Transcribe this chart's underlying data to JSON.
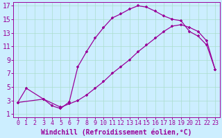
{
  "xlabel": "Windchill (Refroidissement éolien,°C)",
  "ylabel": "",
  "bg_color": "#cceeff",
  "line_color": "#990099",
  "marker": "+",
  "xlim": [
    -0.5,
    23.5
  ],
  "ylim": [
    0.5,
    17.5
  ],
  "xticks": [
    0,
    1,
    2,
    3,
    4,
    5,
    6,
    7,
    8,
    9,
    10,
    11,
    12,
    13,
    14,
    15,
    16,
    17,
    18,
    19,
    20,
    21,
    22,
    23
  ],
  "yticks": [
    1,
    3,
    5,
    7,
    9,
    11,
    13,
    15,
    17
  ],
  "grid_color": "#aaddcc",
  "curve1_x": [
    0,
    1,
    3,
    4,
    5,
    6,
    7,
    8,
    9,
    10,
    11,
    12,
    13,
    14,
    15,
    16,
    17,
    18,
    19,
    20,
    21,
    22,
    23
  ],
  "curve1_y": [
    2.7,
    4.8,
    3.2,
    2.2,
    1.8,
    2.8,
    8.0,
    10.2,
    12.2,
    13.8,
    15.2,
    15.8,
    16.5,
    17.0,
    16.8,
    16.2,
    15.5,
    15.0,
    14.8,
    13.2,
    12.5,
    11.2,
    7.5
  ],
  "curve2_x": [
    0,
    3,
    5,
    6,
    7,
    8,
    9,
    10,
    11,
    12,
    13,
    14,
    15,
    16,
    17,
    18,
    19,
    20,
    21,
    22,
    23
  ],
  "curve2_y": [
    2.7,
    3.2,
    2.0,
    2.5,
    3.0,
    3.8,
    4.8,
    5.8,
    7.0,
    8.0,
    9.0,
    10.2,
    11.2,
    12.2,
    13.2,
    14.0,
    14.2,
    13.8,
    13.2,
    11.8,
    7.5
  ],
  "fontsize_xlabel": 7,
  "fontsize_yticks": 7,
  "fontsize_xticks": 6,
  "markersize": 3,
  "linewidth": 0.9,
  "markeredgewidth": 1.2
}
